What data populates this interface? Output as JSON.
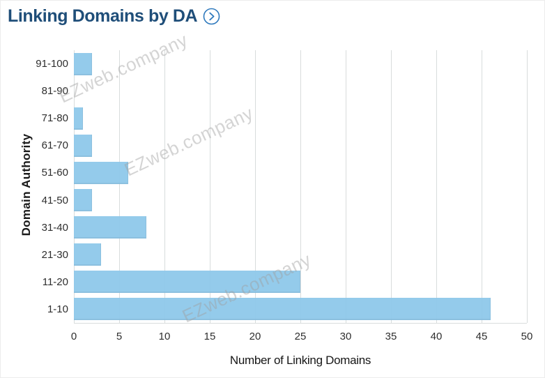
{
  "header": {
    "title": "Linking Domains by DA",
    "title_color": "#1F4E79",
    "icon": "chevron-right-circle",
    "icon_color": "#2E79BD"
  },
  "watermark": {
    "text": "EZweb.company",
    "color": "#BEBEBE"
  },
  "chart_data": {
    "type": "bar",
    "orientation": "horizontal",
    "title": "Linking Domains by DA",
    "categories": [
      "91-100",
      "81-90",
      "71-80",
      "61-70",
      "51-60",
      "41-50",
      "31-40",
      "21-30",
      "11-20",
      "1-10"
    ],
    "values": [
      2,
      0,
      1,
      2,
      6,
      2,
      8,
      3,
      25,
      46
    ],
    "xlabel": "Number of Linking Domains",
    "ylabel": "Domain Authority",
    "xlim": [
      0,
      50
    ],
    "x_ticks": [
      0,
      5,
      10,
      15,
      20,
      25,
      30,
      35,
      40,
      45,
      50
    ],
    "grid": "vertical-only",
    "legend": "none",
    "bar_color": "#8CC7E9",
    "gridline_color": "#D8DCDC"
  }
}
